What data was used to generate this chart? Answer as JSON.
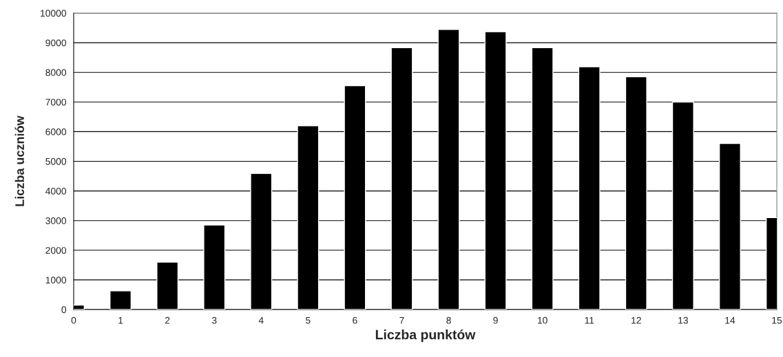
{
  "chart_data": {
    "type": "bar",
    "xlabel": "Liczba punktów",
    "ylabel": "Liczba uczniów",
    "x": [
      0,
      1,
      2,
      3,
      4,
      5,
      6,
      7,
      8,
      9,
      10,
      11,
      12,
      13,
      14,
      15
    ],
    "values": [
      150,
      630,
      1600,
      2850,
      4590,
      6200,
      7550,
      8830,
      9450,
      9370,
      8830,
      8190,
      7850,
      7000,
      5600,
      3100
    ],
    "color": "#000000",
    "xlim": [
      0,
      15
    ],
    "xticks": [
      0,
      1,
      2,
      3,
      4,
      5,
      6,
      7,
      8,
      9,
      10,
      11,
      12,
      13,
      14,
      15
    ],
    "ylim": [
      0,
      10000
    ],
    "yticks": [
      0,
      1000,
      2000,
      3000,
      4000,
      5000,
      6000,
      7000,
      8000,
      9000,
      10000
    ],
    "grid": "y"
  }
}
